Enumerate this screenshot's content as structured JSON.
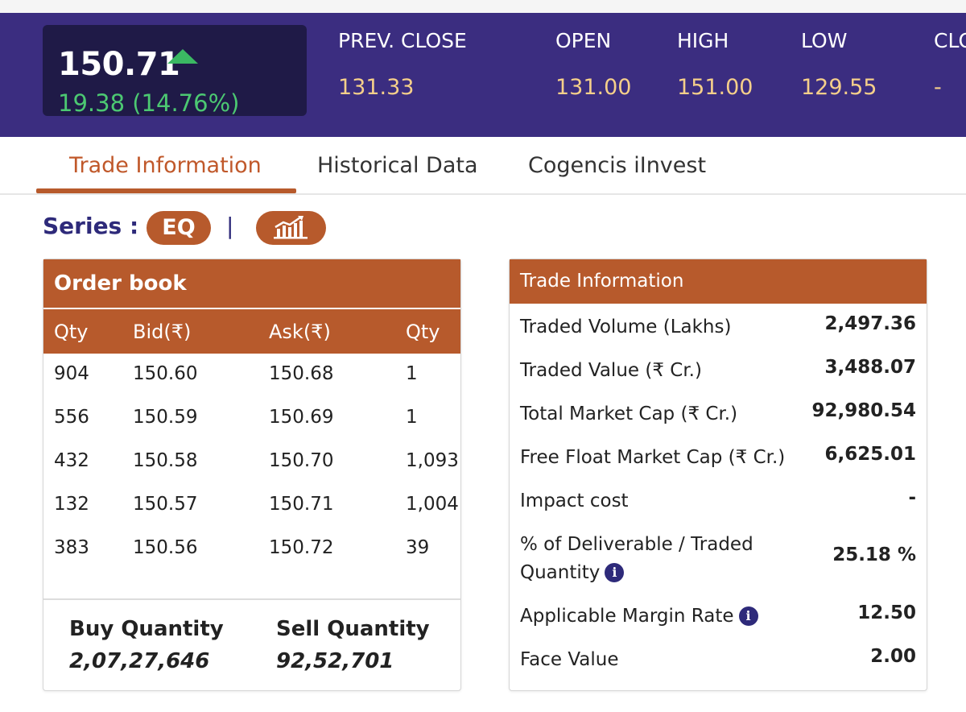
{
  "quote": {
    "last_price": "150.71",
    "change": "19.38 (14.76%)",
    "stats": [
      {
        "label": "PREV. CLOSE",
        "value": "131.33"
      },
      {
        "label": "OPEN",
        "value": "131.00"
      },
      {
        "label": "HIGH",
        "value": "151.00"
      },
      {
        "label": "LOW",
        "value": "129.55"
      },
      {
        "label": "CLOSE",
        "value": "-"
      }
    ],
    "colors": {
      "header_bg": "#3b2d80",
      "price_box_bg": "#1f1a47",
      "positive": "#4cc872",
      "stat_value": "#f5cf8a",
      "accent": "#b75a2c"
    }
  },
  "tabs": [
    {
      "label": "Trade Information",
      "active": true
    },
    {
      "label": "Historical Data",
      "active": false
    },
    {
      "label": "Cogencis iInvest",
      "active": false
    }
  ],
  "series": {
    "label": "Series :",
    "value": "EQ",
    "separator": "|",
    "chart_icon": "bar-chart-icon"
  },
  "order_book": {
    "title": "Order book",
    "columns": [
      "Qty",
      "Bid(₹)",
      "Ask(₹)",
      "Qty"
    ],
    "rows": [
      [
        "904",
        "150.60",
        "150.68",
        "1"
      ],
      [
        "556",
        "150.59",
        "150.69",
        "1"
      ],
      [
        "432",
        "150.58",
        "150.70",
        "1,093"
      ],
      [
        "132",
        "150.57",
        "150.71",
        "1,004"
      ],
      [
        "383",
        "150.56",
        "150.72",
        "39"
      ]
    ],
    "buy_quantity_label": "Buy Quantity",
    "buy_quantity": "2,07,27,646",
    "sell_quantity_label": "Sell Quantity",
    "sell_quantity": "92,52,701"
  },
  "trade_information": {
    "title": "Trade Information",
    "rows": [
      {
        "label": "Traded Volume (Lakhs)",
        "value": "2,497.36"
      },
      {
        "label": "Traded Value (₹ Cr.)",
        "value": "3,488.07"
      },
      {
        "label": "Total Market Cap (₹ Cr.)",
        "value": "92,980.54"
      },
      {
        "label": "Free Float Market Cap (₹ Cr.)",
        "value": "6,625.01"
      },
      {
        "label": "Impact cost",
        "value": "-"
      },
      {
        "label_line1": "% of Deliverable / Traded",
        "label_line2": "Quantity",
        "value": "25.18 %",
        "info_icon": "info-icon"
      },
      {
        "label": "Applicable Margin Rate",
        "value": "12.50",
        "info_icon": "info-icon"
      },
      {
        "label": "Face Value",
        "value": "2.00"
      }
    ]
  }
}
